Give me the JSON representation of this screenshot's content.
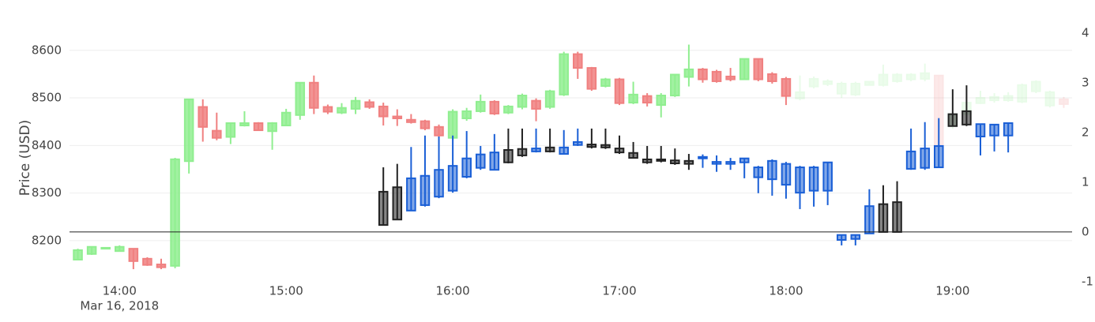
{
  "chart_data": {
    "type": "candlestick",
    "ylabel": "Price (USD)",
    "xlim": [
      "13:42",
      "19:43"
    ],
    "xticks": [
      "14:00",
      "15:00",
      "16:00",
      "17:00",
      "18:00",
      "19:00"
    ],
    "xtick_date": "Mar 16, 2018",
    "ylim": [
      8097,
      8656
    ],
    "yticks": [
      8200,
      8300,
      8400,
      8500,
      8600
    ],
    "y2lim": [
      -1.16,
      4.19
    ],
    "y2ticks": [
      -1,
      0,
      1,
      2,
      3,
      4
    ],
    "y2_zeroline": true,
    "series": [
      {
        "increasing_color": "#90ee90",
        "decreasing_color": "#f08080",
        "dimmed_from": "18:05",
        "x": [
          "13:45",
          "13:50",
          "13:55",
          "14:00",
          "14:05",
          "14:10",
          "14:15",
          "14:20",
          "14:25",
          "14:30",
          "14:35",
          "14:40",
          "14:45",
          "14:50",
          "14:55",
          "15:00",
          "15:05",
          "15:10",
          "15:15",
          "15:20",
          "15:25",
          "15:30",
          "15:35",
          "15:40",
          "15:45",
          "15:50",
          "15:55",
          "16:00",
          "16:05",
          "16:10",
          "16:15",
          "16:20",
          "16:25",
          "16:30",
          "16:35",
          "16:40",
          "16:45",
          "16:50",
          "16:55",
          "17:00",
          "17:05",
          "17:10",
          "17:15",
          "17:20",
          "17:25",
          "17:30",
          "17:35",
          "17:40",
          "17:45",
          "17:50",
          "17:55",
          "18:00",
          "18:05",
          "18:10",
          "18:15",
          "18:20",
          "18:25",
          "18:30",
          "18:35",
          "18:40",
          "18:45",
          "18:50",
          "18:55",
          "19:00",
          "19:05",
          "19:10",
          "19:15",
          "19:20",
          "19:25",
          "19:30",
          "19:35",
          "19:40"
        ],
        "open": [
          8160,
          8172,
          8183,
          8178,
          8183,
          8162,
          8150,
          8147,
          8367,
          8481,
          8431,
          8418,
          8442,
          8447,
          8430,
          8442,
          8464,
          8532,
          8481,
          8469,
          8477,
          8491,
          8482,
          8461,
          8454,
          8451,
          8439,
          8416,
          8457,
          8472,
          8492,
          8469,
          8481,
          8494,
          8481,
          8507,
          8592,
          8563,
          8525,
          8539,
          8490,
          8504,
          8485,
          8505,
          8544,
          8560,
          8555,
          8545,
          8539,
          8582,
          8550,
          8540,
          8499,
          8524,
          8529,
          8509,
          8507,
          8527,
          8527,
          8535,
          8539,
          8540,
          8547,
          8441,
          8466,
          8489,
          8495,
          8495,
          8492,
          8514,
          8484,
          8497
        ],
        "high": [
          8183,
          8187,
          8186,
          8190,
          8183,
          8165,
          8162,
          8374,
          8497,
          8497,
          8469,
          8447,
          8472,
          8449,
          8449,
          8477,
          8532,
          8547,
          8486,
          8489,
          8502,
          8497,
          8490,
          8476,
          8466,
          8454,
          8444,
          8476,
          8479,
          8507,
          8495,
          8485,
          8509,
          8499,
          8517,
          8597,
          8597,
          8565,
          8542,
          8542,
          8534,
          8510,
          8510,
          8550,
          8612,
          8563,
          8559,
          8563,
          8582,
          8582,
          8554,
          8544,
          8547,
          8545,
          8539,
          8534,
          8534,
          8534,
          8570,
          8552,
          8552,
          8572,
          8547,
          8470,
          8495,
          8515,
          8510,
          8512,
          8530,
          8537,
          8515,
          8502
        ],
        "low": [
          8160,
          8170,
          8182,
          8177,
          8140,
          8147,
          8140,
          8142,
          8341,
          8408,
          8411,
          8403,
          8440,
          8432,
          8391,
          8442,
          8454,
          8466,
          8466,
          8466,
          8466,
          8477,
          8442,
          8441,
          8446,
          8432,
          8416,
          8411,
          8452,
          8469,
          8464,
          8466,
          8476,
          8451,
          8477,
          8504,
          8540,
          8515,
          8522,
          8485,
          8487,
          8482,
          8459,
          8502,
          8524,
          8532,
          8532,
          8535,
          8539,
          8535,
          8530,
          8485,
          8495,
          8520,
          8525,
          8500,
          8504,
          8527,
          8524,
          8532,
          8535,
          8535,
          8374,
          8435,
          8460,
          8487,
          8490,
          8492,
          8489,
          8510,
          8480,
          8479
        ],
        "close": [
          8180,
          8187,
          8185,
          8187,
          8157,
          8149,
          8144,
          8371,
          8497,
          8439,
          8416,
          8447,
          8447,
          8432,
          8447,
          8469,
          8532,
          8479,
          8471,
          8479,
          8494,
          8481,
          8461,
          8457,
          8449,
          8436,
          8421,
          8471,
          8472,
          8492,
          8467,
          8482,
          8505,
          8477,
          8514,
          8592,
          8563,
          8519,
          8539,
          8489,
          8507,
          8490,
          8505,
          8549,
          8560,
          8539,
          8535,
          8539,
          8582,
          8539,
          8535,
          8504,
          8512,
          8540,
          8535,
          8530,
          8530,
          8534,
          8549,
          8549,
          8549,
          8552,
          8398,
          8466,
          8490,
          8500,
          8502,
          8504,
          8527,
          8534,
          8512,
          8487
        ]
      },
      {
        "axis": "y2",
        "increasing_color": "#222222",
        "decreasing_color": "#1a5fd6",
        "x": [
          "15:35",
          "15:40",
          "15:45",
          "15:50",
          "15:55",
          "16:00",
          "16:05",
          "16:10",
          "16:15",
          "16:20",
          "16:25",
          "16:30",
          "16:35",
          "16:40",
          "16:45",
          "16:50",
          "16:55",
          "17:00",
          "17:05",
          "17:10",
          "17:15",
          "17:20",
          "17:25",
          "17:30",
          "17:35",
          "17:40",
          "17:45",
          "17:50",
          "17:55",
          "18:00",
          "18:05",
          "18:10",
          "18:15",
          "18:20",
          "18:25",
          "18:30",
          "18:35",
          "18:40",
          "18:45",
          "18:50",
          "18:55",
          "19:00",
          "19:05",
          "19:10",
          "19:15",
          "19:20"
        ],
        "open": [
          0.14,
          0.25,
          1.08,
          1.13,
          1.25,
          1.33,
          1.48,
          1.56,
          1.6,
          1.4,
          1.54,
          1.68,
          1.62,
          1.7,
          1.81,
          1.71,
          1.7,
          1.6,
          1.49,
          1.4,
          1.43,
          1.38,
          1.37,
          1.51,
          1.41,
          1.41,
          1.48,
          1.3,
          1.43,
          1.37,
          1.3,
          1.3,
          1.4,
          -0.06,
          -0.06,
          0.52,
          0.0,
          0.0,
          1.62,
          1.68,
          1.73,
          2.13,
          2.16,
          2.17,
          2.16,
          2.19
        ],
        "high": [
          1.3,
          1.37,
          1.71,
          1.94,
          1.92,
          1.94,
          2.03,
          1.73,
          1.97,
          2.08,
          2.08,
          2.08,
          2.08,
          2.05,
          2.08,
          2.08,
          2.08,
          1.94,
          1.81,
          1.73,
          1.73,
          1.68,
          1.57,
          1.56,
          1.54,
          1.49,
          1.48,
          1.33,
          1.46,
          1.41,
          1.33,
          1.33,
          1.4,
          -0.06,
          -0.06,
          0.86,
          0.94,
          1.02,
          2.08,
          2.21,
          2.29,
          2.87,
          2.95,
          2.17,
          2.16,
          2.19
        ],
        "low": [
          0.14,
          0.24,
          0.43,
          0.51,
          0.68,
          0.79,
          1.08,
          1.25,
          1.24,
          1.38,
          1.51,
          1.6,
          1.6,
          1.56,
          1.73,
          1.68,
          1.67,
          1.57,
          1.48,
          1.37,
          1.4,
          1.35,
          1.25,
          1.29,
          1.21,
          1.25,
          1.08,
          0.78,
          0.73,
          0.67,
          0.46,
          0.51,
          0.54,
          -0.27,
          -0.27,
          -0.03,
          0.0,
          0.0,
          1.25,
          1.25,
          1.29,
          2.13,
          2.13,
          1.54,
          1.62,
          1.6
        ],
        "close": [
          0.81,
          0.9,
          0.43,
          0.54,
          0.71,
          0.83,
          1.11,
          1.29,
          1.25,
          1.65,
          1.67,
          1.62,
          1.7,
          1.57,
          1.75,
          1.76,
          1.75,
          1.68,
          1.59,
          1.46,
          1.46,
          1.44,
          1.43,
          1.48,
          1.37,
          1.37,
          1.4,
          1.1,
          1.06,
          0.95,
          0.79,
          0.83,
          0.83,
          -0.16,
          -0.14,
          -0.03,
          0.56,
          0.6,
          1.27,
          1.29,
          1.3,
          2.37,
          2.43,
          1.92,
          1.94,
          1.94
        ]
      }
    ]
  }
}
